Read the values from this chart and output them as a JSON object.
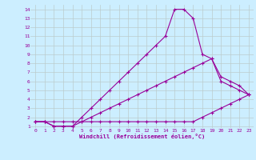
{
  "xlabel": "Windchill (Refroidissement éolien,°C)",
  "xlim": [
    -0.5,
    23.5
  ],
  "ylim": [
    0.8,
    14.5
  ],
  "xticks": [
    0,
    1,
    2,
    3,
    4,
    5,
    6,
    7,
    8,
    9,
    10,
    11,
    12,
    13,
    14,
    15,
    16,
    17,
    18,
    19,
    20,
    21,
    22,
    23
  ],
  "yticks": [
    1,
    2,
    3,
    4,
    5,
    6,
    7,
    8,
    9,
    10,
    11,
    12,
    13,
    14
  ],
  "bg_color": "#cceeff",
  "line_color": "#990099",
  "grid_color": "#bbcccc",
  "lines": [
    {
      "x": [
        0,
        1,
        2,
        3,
        4,
        5,
        6,
        7,
        8,
        9,
        10,
        11,
        12,
        13,
        14,
        15,
        16,
        17,
        18,
        19,
        20,
        21,
        22,
        23
      ],
      "y": [
        1.5,
        1.5,
        1.5,
        1.5,
        1.5,
        1.5,
        1.5,
        1.5,
        1.5,
        1.5,
        1.5,
        1.5,
        1.5,
        1.5,
        1.5,
        1.5,
        1.5,
        1.5,
        2,
        2.5,
        3,
        3.5,
        4,
        4.5
      ]
    },
    {
      "x": [
        0,
        1,
        2,
        3,
        4,
        5,
        6,
        7,
        8,
        9,
        10,
        11,
        12,
        13,
        14,
        15,
        16,
        17,
        18,
        19,
        20,
        21,
        22,
        23
      ],
      "y": [
        1.5,
        1.5,
        1,
        1,
        1,
        1.5,
        2,
        2.5,
        3,
        3.5,
        4,
        4.5,
        5,
        5.5,
        6,
        6.5,
        7,
        7.5,
        8,
        8.5,
        6,
        5.5,
        5,
        4.5
      ]
    },
    {
      "x": [
        0,
        1,
        2,
        3,
        4,
        5,
        6,
        7,
        8,
        9,
        10,
        11,
        12,
        13,
        14,
        15,
        16,
        17,
        18,
        19,
        20,
        21,
        22,
        23
      ],
      "y": [
        1.5,
        1.5,
        1,
        1,
        1,
        2,
        3,
        4,
        5,
        6,
        7,
        8,
        9,
        10,
        11,
        14,
        14,
        13,
        9,
        8.5,
        6.5,
        6,
        5.5,
        4.5
      ]
    }
  ]
}
